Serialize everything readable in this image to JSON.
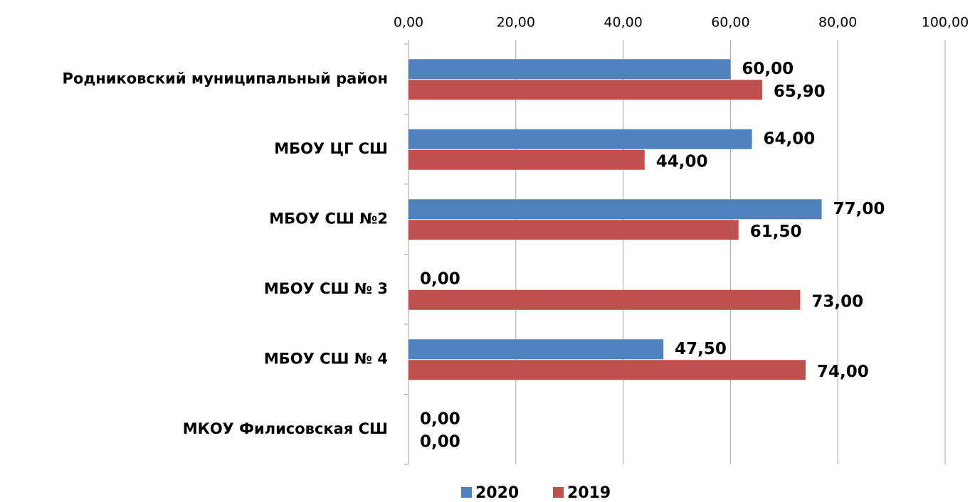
{
  "chart_data": {
    "type": "hbar",
    "categories": [
      "Родниковский муниципальный район",
      "МБОУ ЦГ СШ",
      "МБОУ СШ №2",
      "МБОУ СШ № 3",
      "МБОУ СШ № 4",
      "МКОУ Филисовская СШ"
    ],
    "series": [
      {
        "name": "2020",
        "color": "#4f81bd",
        "values": [
          60,
          64,
          77,
          0,
          47.5,
          0
        ],
        "value_labels": [
          "60,00",
          "64,00",
          "77,00",
          "0,00",
          "47,50",
          "0,00"
        ]
      },
      {
        "name": "2019",
        "color": "#c0504d",
        "values": [
          65.9,
          44,
          61.5,
          73,
          74,
          0
        ],
        "value_labels": [
          "65,90",
          "44,00",
          "61,50",
          "73,00",
          "74,00",
          "0,00"
        ]
      }
    ],
    "xlim": [
      0,
      100
    ],
    "xticks": [
      {
        "value": 0,
        "label": "0,00"
      },
      {
        "value": 20,
        "label": "20,00"
      },
      {
        "value": 40,
        "label": "40,00"
      },
      {
        "value": 60,
        "label": "60,00"
      },
      {
        "value": 80,
        "label": "80,00"
      },
      {
        "value": 100,
        "label": "100,00"
      }
    ],
    "grid": true,
    "legend": "bottom"
  }
}
